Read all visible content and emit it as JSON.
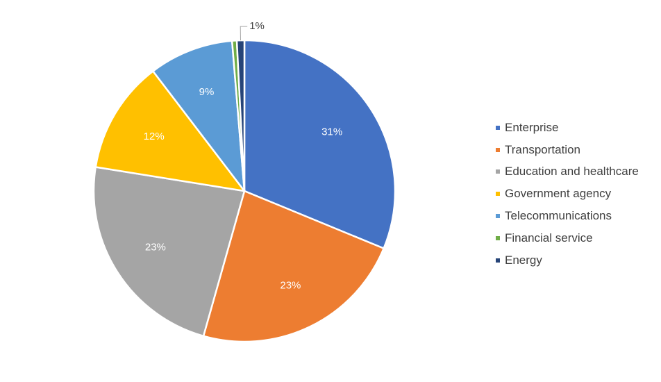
{
  "chart_data": {
    "type": "pie",
    "title": "",
    "legend_position": "right",
    "slices": [
      {
        "name": "Enterprise",
        "value": 31,
        "label": "31%",
        "color": "#4472C4"
      },
      {
        "name": "Transportation",
        "value": 23,
        "label": "23%",
        "color": "#ED7D31"
      },
      {
        "name": "Education and healthcare",
        "value": 23,
        "label": "23%",
        "color": "#A5A5A5"
      },
      {
        "name": "Government agency",
        "value": 12,
        "label": "12%",
        "color": "#FFC000"
      },
      {
        "name": "Telecommunications",
        "value": 9,
        "label": "9%",
        "color": "#5B9BD5"
      },
      {
        "name": "Financial service",
        "value": 0.5,
        "label": "",
        "color": "#70AD47"
      },
      {
        "name": "Energy",
        "value": 0.8,
        "label": "1%",
        "color": "#264478"
      }
    ]
  }
}
